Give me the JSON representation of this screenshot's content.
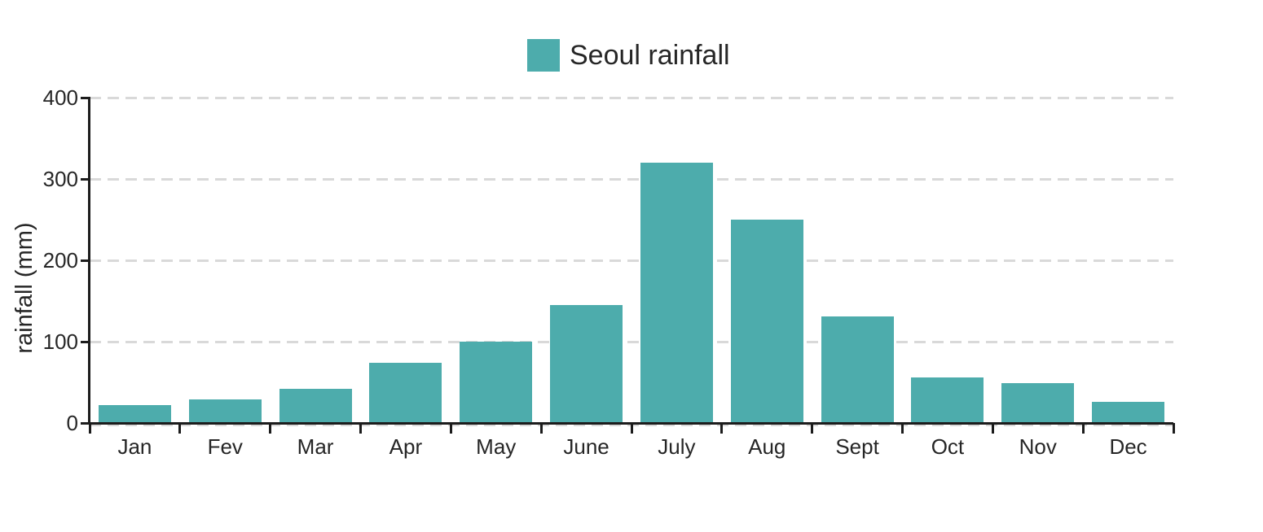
{
  "chart_data": {
    "type": "bar",
    "title": "Seoul rainfall",
    "legend": {
      "label": "Seoul rainfall",
      "position": "top-center"
    },
    "categories": [
      "Jan",
      "Fev",
      "Mar",
      "Apr",
      "May",
      "June",
      "July",
      "Aug",
      "Sept",
      "Oct",
      "Nov",
      "Dec"
    ],
    "series": [
      {
        "name": "Seoul rainfall",
        "color": "#4dacac",
        "values": [
          21,
          28,
          41,
          73,
          99,
          144,
          319,
          249,
          130,
          55,
          48,
          25
        ]
      }
    ],
    "xlabel": "",
    "ylabel": "rainfall (mm)",
    "ylim": [
      0,
      400
    ],
    "yticks": [
      0,
      100,
      200,
      300,
      400
    ],
    "grid": {
      "horizontal": true,
      "style": "dashed",
      "color": "#d9d9d9"
    },
    "colors": {
      "bar": "#4dacac",
      "axis": "#1c1c1c",
      "text": "#262626",
      "grid": "#d9d9d9",
      "background": "#ffffff"
    }
  }
}
